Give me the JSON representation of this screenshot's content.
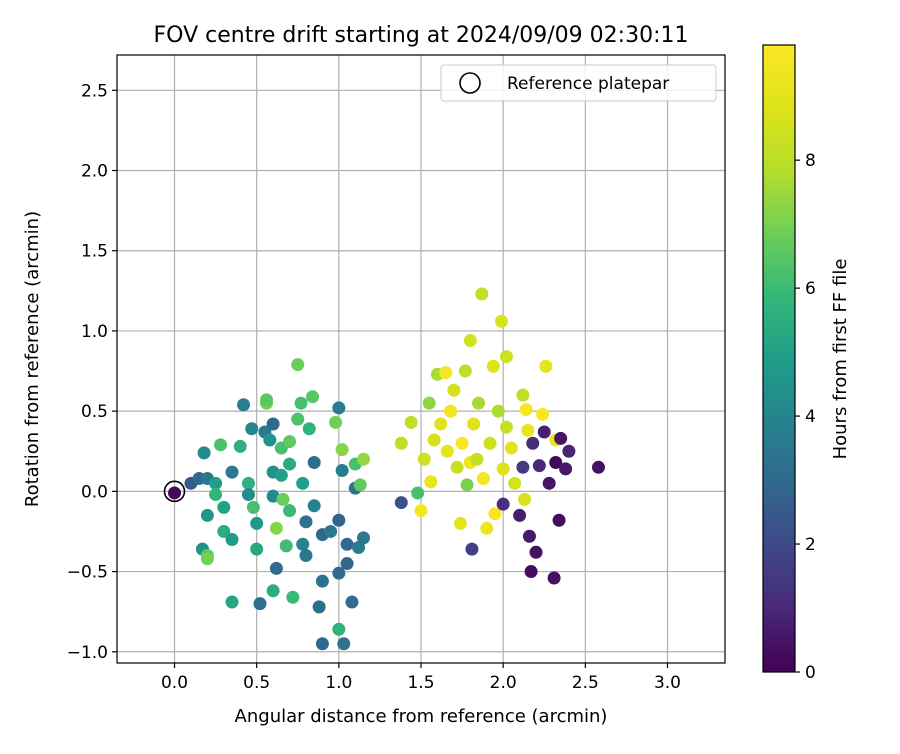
{
  "chart_data": {
    "type": "scatter",
    "title": "FOV centre drift starting at 2024/09/09 02:30:11",
    "xlabel": "Angular distance from reference (arcmin)",
    "ylabel": "Rotation from reference (arcmin)",
    "xlim": [
      -0.35,
      3.35
    ],
    "ylim": [
      -1.07,
      2.72
    ],
    "xticks": [
      0.0,
      0.5,
      1.0,
      1.5,
      2.0,
      2.5,
      3.0
    ],
    "xtick_labels": [
      "0.0",
      "0.5",
      "1.0",
      "1.5",
      "2.0",
      "2.5",
      "3.0"
    ],
    "yticks": [
      -1.0,
      -0.5,
      0.0,
      0.5,
      1.0,
      1.5,
      2.0,
      2.5
    ],
    "ytick_labels": [
      "−1.0",
      "−0.5",
      "0.0",
      "0.5",
      "1.0",
      "1.5",
      "2.0",
      "2.5"
    ],
    "grid": true,
    "legend": {
      "placement": "top-right",
      "entries": [
        {
          "label": "Reference platepar",
          "marker": "open-circle",
          "x": 0.0,
          "y": 0.0
        }
      ]
    },
    "colorbar": {
      "label": "Hours from first FF file",
      "colormap": "viridis",
      "range": [
        0,
        9.8
      ],
      "ticks": [
        0,
        2,
        4,
        6,
        8
      ],
      "tick_labels": [
        "0",
        "2",
        "4",
        "6",
        "8"
      ]
    },
    "points": [
      {
        "x": 0.0,
        "y": -0.01,
        "c": 0.2
      },
      {
        "x": 0.1,
        "y": 0.05,
        "c": 2.5
      },
      {
        "x": 0.15,
        "y": 0.08,
        "c": 3.0
      },
      {
        "x": 0.18,
        "y": 0.24,
        "c": 4.2
      },
      {
        "x": 0.2,
        "y": 0.08,
        "c": 3.5
      },
      {
        "x": 0.2,
        "y": -0.15,
        "c": 4.6
      },
      {
        "x": 0.17,
        "y": -0.36,
        "c": 4.5
      },
      {
        "x": 0.2,
        "y": -0.4,
        "c": 6.6
      },
      {
        "x": 0.2,
        "y": -0.42,
        "c": 7.0
      },
      {
        "x": 0.28,
        "y": 0.29,
        "c": 6.3
      },
      {
        "x": 0.25,
        "y": 0.05,
        "c": 4.9
      },
      {
        "x": 0.25,
        "y": -0.02,
        "c": 5.8
      },
      {
        "x": 0.3,
        "y": -0.1,
        "c": 5.1
      },
      {
        "x": 0.3,
        "y": -0.25,
        "c": 5.5
      },
      {
        "x": 0.35,
        "y": 0.12,
        "c": 3.6
      },
      {
        "x": 0.35,
        "y": -0.3,
        "c": 4.8
      },
      {
        "x": 0.35,
        "y": -0.69,
        "c": 5.2
      },
      {
        "x": 0.4,
        "y": 0.28,
        "c": 5.6
      },
      {
        "x": 0.42,
        "y": 0.54,
        "c": 3.8
      },
      {
        "x": 0.45,
        "y": 0.05,
        "c": 5.6
      },
      {
        "x": 0.45,
        "y": -0.02,
        "c": 4.3
      },
      {
        "x": 0.47,
        "y": 0.39,
        "c": 4.1
      },
      {
        "x": 0.48,
        "y": -0.1,
        "c": 6.2
      },
      {
        "x": 0.5,
        "y": -0.2,
        "c": 4.7
      },
      {
        "x": 0.5,
        "y": -0.36,
        "c": 5.3
      },
      {
        "x": 0.52,
        "y": -0.7,
        "c": 3.2
      },
      {
        "x": 0.55,
        "y": 0.37,
        "c": 3.7
      },
      {
        "x": 0.56,
        "y": 0.55,
        "c": 6.9
      },
      {
        "x": 0.56,
        "y": 0.57,
        "c": 6.5
      },
      {
        "x": 0.58,
        "y": 0.32,
        "c": 4.5
      },
      {
        "x": 0.6,
        "y": 0.42,
        "c": 2.9
      },
      {
        "x": 0.6,
        "y": 0.12,
        "c": 4.4
      },
      {
        "x": 0.6,
        "y": -0.03,
        "c": 4.2
      },
      {
        "x": 0.62,
        "y": -0.23,
        "c": 7.2
      },
      {
        "x": 0.62,
        "y": -0.48,
        "c": 3.1
      },
      {
        "x": 0.6,
        "y": -0.62,
        "c": 5.5
      },
      {
        "x": 0.65,
        "y": 0.27,
        "c": 6.2
      },
      {
        "x": 0.65,
        "y": 0.1,
        "c": 5.0
      },
      {
        "x": 0.66,
        "y": -0.05,
        "c": 6.8
      },
      {
        "x": 0.68,
        "y": -0.34,
        "c": 6.1
      },
      {
        "x": 0.7,
        "y": 0.31,
        "c": 6.6
      },
      {
        "x": 0.7,
        "y": 0.17,
        "c": 5.4
      },
      {
        "x": 0.7,
        "y": -0.12,
        "c": 6.0
      },
      {
        "x": 0.72,
        "y": -0.66,
        "c": 6.0
      },
      {
        "x": 0.75,
        "y": 0.79,
        "c": 6.8
      },
      {
        "x": 0.75,
        "y": 0.45,
        "c": 6.3
      },
      {
        "x": 0.77,
        "y": 0.55,
        "c": 6.2
      },
      {
        "x": 0.78,
        "y": 0.05,
        "c": 4.9
      },
      {
        "x": 0.78,
        "y": -0.33,
        "c": 4.0
      },
      {
        "x": 0.8,
        "y": -0.19,
        "c": 3.3
      },
      {
        "x": 0.8,
        "y": -0.4,
        "c": 3.6
      },
      {
        "x": 0.82,
        "y": 0.39,
        "c": 5.7
      },
      {
        "x": 0.84,
        "y": 0.59,
        "c": 6.5
      },
      {
        "x": 0.85,
        "y": 0.18,
        "c": 3.1
      },
      {
        "x": 0.85,
        "y": -0.09,
        "c": 3.9
      },
      {
        "x": 0.88,
        "y": -0.72,
        "c": 3.1
      },
      {
        "x": 0.9,
        "y": -0.95,
        "c": 3.0
      },
      {
        "x": 0.9,
        "y": -0.56,
        "c": 3.4
      },
      {
        "x": 0.9,
        "y": -0.27,
        "c": 2.9
      },
      {
        "x": 0.95,
        "y": -0.25,
        "c": 3.6
      },
      {
        "x": 0.98,
        "y": 0.43,
        "c": 6.9
      },
      {
        "x": 1.0,
        "y": 0.52,
        "c": 3.7
      },
      {
        "x": 1.0,
        "y": -0.86,
        "c": 5.7
      },
      {
        "x": 1.02,
        "y": 0.26,
        "c": 7.2
      },
      {
        "x": 1.02,
        "y": 0.13,
        "c": 3.8
      },
      {
        "x": 1.0,
        "y": -0.18,
        "c": 2.8
      },
      {
        "x": 1.0,
        "y": -0.51,
        "c": 3.1
      },
      {
        "x": 1.03,
        "y": -0.95,
        "c": 3.4
      },
      {
        "x": 1.05,
        "y": -0.33,
        "c": 3.0
      },
      {
        "x": 1.05,
        "y": -0.45,
        "c": 2.8
      },
      {
        "x": 1.08,
        "y": -0.69,
        "c": 3.1
      },
      {
        "x": 1.1,
        "y": 0.17,
        "c": 6.2
      },
      {
        "x": 1.1,
        "y": 0.02,
        "c": 3.3
      },
      {
        "x": 1.12,
        "y": -0.35,
        "c": 3.7
      },
      {
        "x": 1.13,
        "y": 0.04,
        "c": 6.6
      },
      {
        "x": 1.15,
        "y": -0.29,
        "c": 3.5
      },
      {
        "x": 1.15,
        "y": 0.2,
        "c": 7.4
      },
      {
        "x": 1.38,
        "y": -0.07,
        "c": 2.3
      },
      {
        "x": 1.38,
        "y": 0.3,
        "c": 8.0
      },
      {
        "x": 1.44,
        "y": 0.43,
        "c": 8.1
      },
      {
        "x": 1.48,
        "y": -0.01,
        "c": 6.2
      },
      {
        "x": 1.5,
        "y": -0.12,
        "c": 9.5
      },
      {
        "x": 1.52,
        "y": 0.2,
        "c": 8.4
      },
      {
        "x": 1.55,
        "y": 0.55,
        "c": 7.3
      },
      {
        "x": 1.56,
        "y": 0.06,
        "c": 9.2
      },
      {
        "x": 1.58,
        "y": 0.32,
        "c": 8.7
      },
      {
        "x": 1.6,
        "y": 0.73,
        "c": 7.7
      },
      {
        "x": 1.62,
        "y": 0.42,
        "c": 8.9
      },
      {
        "x": 1.65,
        "y": 0.74,
        "c": 9.6
      },
      {
        "x": 1.66,
        "y": 0.25,
        "c": 9.1
      },
      {
        "x": 1.68,
        "y": 0.5,
        "c": 9.4
      },
      {
        "x": 1.7,
        "y": 0.63,
        "c": 8.6
      },
      {
        "x": 1.72,
        "y": 0.15,
        "c": 8.3
      },
      {
        "x": 1.74,
        "y": -0.2,
        "c": 9.0
      },
      {
        "x": 1.75,
        "y": 0.3,
        "c": 9.7
      },
      {
        "x": 1.77,
        "y": 0.75,
        "c": 8.0
      },
      {
        "x": 1.78,
        "y": 0.04,
        "c": 7.0
      },
      {
        "x": 1.8,
        "y": 0.94,
        "c": 8.5
      },
      {
        "x": 1.8,
        "y": 0.18,
        "c": 9.3
      },
      {
        "x": 1.81,
        "y": -0.36,
        "c": 1.7
      },
      {
        "x": 1.82,
        "y": 0.42,
        "c": 8.8
      },
      {
        "x": 1.84,
        "y": 0.2,
        "c": 8.2
      },
      {
        "x": 1.85,
        "y": 0.55,
        "c": 7.6
      },
      {
        "x": 1.87,
        "y": 1.23,
        "c": 8.2
      },
      {
        "x": 1.88,
        "y": 0.08,
        "c": 9.6
      },
      {
        "x": 1.9,
        "y": -0.23,
        "c": 9.3
      },
      {
        "x": 1.92,
        "y": 0.3,
        "c": 8.4
      },
      {
        "x": 1.94,
        "y": 0.78,
        "c": 8.9
      },
      {
        "x": 1.95,
        "y": -0.14,
        "c": 9.6
      },
      {
        "x": 1.97,
        "y": 0.5,
        "c": 7.7
      },
      {
        "x": 1.99,
        "y": 1.06,
        "c": 8.7
      },
      {
        "x": 2.0,
        "y": -0.08,
        "c": 1.2
      },
      {
        "x": 2.0,
        "y": 0.14,
        "c": 8.9
      },
      {
        "x": 2.02,
        "y": 0.4,
        "c": 8.3
      },
      {
        "x": 2.02,
        "y": 0.84,
        "c": 8.4
      },
      {
        "x": 2.05,
        "y": 0.27,
        "c": 9.0
      },
      {
        "x": 2.07,
        "y": 0.05,
        "c": 8.6
      },
      {
        "x": 2.1,
        "y": -0.15,
        "c": 0.7
      },
      {
        "x": 2.12,
        "y": 0.15,
        "c": 1.5
      },
      {
        "x": 2.12,
        "y": 0.6,
        "c": 8.1
      },
      {
        "x": 2.13,
        "y": -0.05,
        "c": 8.7
      },
      {
        "x": 2.14,
        "y": 0.51,
        "c": 9.7
      },
      {
        "x": 2.15,
        "y": 0.38,
        "c": 9.2
      },
      {
        "x": 2.16,
        "y": -0.28,
        "c": 0.6
      },
      {
        "x": 2.17,
        "y": -0.5,
        "c": 0.3
      },
      {
        "x": 2.18,
        "y": 0.3,
        "c": 1.1
      },
      {
        "x": 2.2,
        "y": -0.38,
        "c": 0.4
      },
      {
        "x": 2.22,
        "y": 0.16,
        "c": 1.0
      },
      {
        "x": 2.24,
        "y": 0.48,
        "c": 9.7
      },
      {
        "x": 2.25,
        "y": 0.37,
        "c": 0.8
      },
      {
        "x": 2.26,
        "y": 0.78,
        "c": 9.0
      },
      {
        "x": 2.28,
        "y": 0.05,
        "c": 0.5
      },
      {
        "x": 2.31,
        "y": -0.54,
        "c": 0.4
      },
      {
        "x": 2.32,
        "y": 0.18,
        "c": 0.2
      },
      {
        "x": 2.32,
        "y": 0.32,
        "c": 9.2
      },
      {
        "x": 2.34,
        "y": -0.18,
        "c": 0.3
      },
      {
        "x": 2.35,
        "y": 0.33,
        "c": 0.5
      },
      {
        "x": 2.38,
        "y": 0.14,
        "c": 0.6
      },
      {
        "x": 2.4,
        "y": 0.25,
        "c": 0.9
      },
      {
        "x": 2.58,
        "y": 0.15,
        "c": 0.4
      }
    ]
  }
}
